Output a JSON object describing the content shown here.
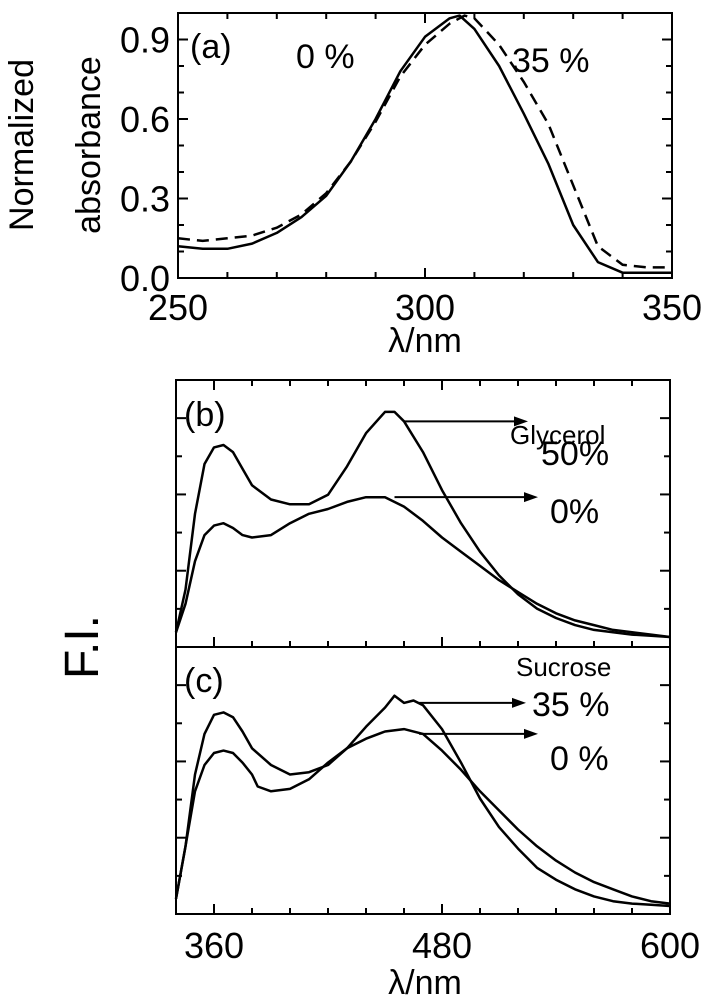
{
  "chart_data": [
    {
      "panel": "(a)",
      "type": "line",
      "ylabel": [
        "Normalized",
        "absorbance"
      ],
      "xlabel": "λ/nm",
      "xlim": [
        250,
        350
      ],
      "ylim": [
        0,
        1.0
      ],
      "xticks": [
        250,
        300,
        350
      ],
      "yticks": [
        "0.0",
        "0.3",
        "0.6",
        "0.9"
      ],
      "series": [
        {
          "name": "0 %",
          "style": "solid",
          "x": [
            250,
            255,
            260,
            265,
            270,
            275,
            280,
            285,
            290,
            295,
            300,
            305,
            307,
            310,
            315,
            320,
            325,
            330,
            335,
            340,
            345,
            350
          ],
          "y": [
            0.12,
            0.11,
            0.11,
            0.13,
            0.17,
            0.23,
            0.31,
            0.44,
            0.6,
            0.78,
            0.91,
            0.98,
            0.99,
            0.94,
            0.8,
            0.62,
            0.43,
            0.2,
            0.06,
            0.02,
            0.02,
            0.02
          ]
        },
        {
          "name": "35 %",
          "style": "dashed",
          "x": [
            250,
            255,
            260,
            265,
            270,
            275,
            280,
            285,
            290,
            295,
            300,
            305,
            308,
            310,
            315,
            320,
            325,
            330,
            335,
            340,
            345,
            350
          ],
          "y": [
            0.15,
            0.14,
            0.15,
            0.16,
            0.19,
            0.24,
            0.32,
            0.44,
            0.59,
            0.76,
            0.88,
            0.96,
            0.99,
            0.98,
            0.88,
            0.74,
            0.58,
            0.35,
            0.12,
            0.05,
            0.04,
            0.04
          ]
        }
      ]
    },
    {
      "panel": "(b)",
      "type": "line",
      "legend_title": "Glycerol",
      "xlim": [
        340,
        600
      ],
      "ylim": [
        0,
        1.0
      ],
      "series": [
        {
          "name": "50%",
          "x": [
            340,
            345,
            350,
            355,
            360,
            365,
            370,
            375,
            380,
            390,
            400,
            410,
            420,
            430,
            440,
            450,
            455,
            460,
            470,
            480,
            490,
            500,
            510,
            520,
            530,
            540,
            550,
            560,
            570,
            580,
            590,
            600
          ],
          "y": [
            0.02,
            0.2,
            0.52,
            0.73,
            0.8,
            0.81,
            0.78,
            0.71,
            0.64,
            0.58,
            0.56,
            0.56,
            0.6,
            0.72,
            0.86,
            0.95,
            0.95,
            0.91,
            0.78,
            0.62,
            0.48,
            0.36,
            0.26,
            0.18,
            0.12,
            0.08,
            0.05,
            0.03,
            0.02,
            0.01,
            0.005,
            0.0
          ]
        },
        {
          "name": "0%",
          "x": [
            340,
            345,
            350,
            355,
            360,
            365,
            370,
            375,
            380,
            390,
            400,
            410,
            420,
            430,
            440,
            450,
            460,
            470,
            480,
            490,
            500,
            510,
            520,
            530,
            540,
            550,
            560,
            570,
            580,
            590,
            600
          ],
          "y": [
            0.02,
            0.14,
            0.32,
            0.43,
            0.47,
            0.48,
            0.46,
            0.43,
            0.42,
            0.43,
            0.48,
            0.52,
            0.54,
            0.57,
            0.59,
            0.59,
            0.55,
            0.49,
            0.42,
            0.36,
            0.3,
            0.24,
            0.19,
            0.14,
            0.1,
            0.07,
            0.05,
            0.03,
            0.02,
            0.01,
            0.0
          ]
        }
      ]
    },
    {
      "panel": "(c)",
      "type": "line",
      "legend_title": "Sucrose",
      "xlabel": "λ/nm",
      "xlim": [
        340,
        600
      ],
      "ylim": [
        0,
        1.0
      ],
      "xticks": [
        360,
        480,
        600
      ],
      "series": [
        {
          "name": "35 %",
          "x": [
            340,
            345,
            350,
            355,
            360,
            365,
            370,
            375,
            380,
            390,
            400,
            410,
            420,
            430,
            440,
            450,
            455,
            460,
            465,
            470,
            480,
            490,
            500,
            510,
            520,
            530,
            540,
            550,
            560,
            570,
            580,
            590,
            600
          ],
          "y": [
            0.03,
            0.25,
            0.55,
            0.72,
            0.8,
            0.81,
            0.79,
            0.73,
            0.66,
            0.59,
            0.55,
            0.56,
            0.59,
            0.66,
            0.75,
            0.83,
            0.88,
            0.85,
            0.86,
            0.84,
            0.74,
            0.6,
            0.45,
            0.33,
            0.24,
            0.16,
            0.11,
            0.07,
            0.04,
            0.02,
            0.01,
            0.005,
            0.0
          ]
        },
        {
          "name": "0 %",
          "x": [
            340,
            345,
            350,
            355,
            360,
            365,
            370,
            375,
            380,
            383,
            390,
            400,
            410,
            420,
            430,
            440,
            450,
            460,
            470,
            480,
            490,
            500,
            510,
            520,
            530,
            540,
            550,
            560,
            570,
            580,
            590,
            600
          ],
          "y": [
            0.03,
            0.25,
            0.48,
            0.59,
            0.64,
            0.65,
            0.64,
            0.6,
            0.55,
            0.5,
            0.48,
            0.49,
            0.53,
            0.6,
            0.66,
            0.7,
            0.73,
            0.74,
            0.72,
            0.65,
            0.57,
            0.48,
            0.4,
            0.32,
            0.25,
            0.19,
            0.14,
            0.1,
            0.07,
            0.04,
            0.02,
            0.01
          ]
        }
      ]
    }
  ],
  "shared_ylabel_bc": "F.I."
}
